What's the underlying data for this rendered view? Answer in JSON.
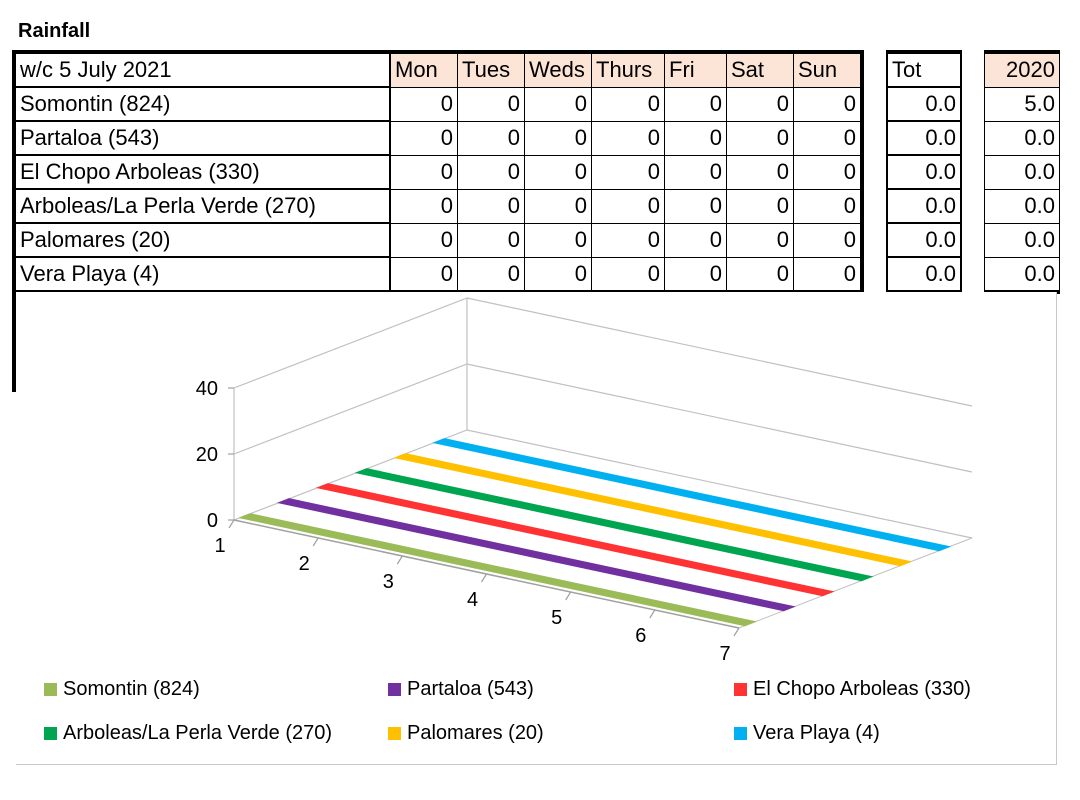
{
  "title": "Rainfall",
  "table": {
    "week_label": "w/c 5 July 2021",
    "days": [
      "Mon",
      "Tues",
      "Weds",
      "Thurs",
      "Fri",
      "Sat",
      "Sun"
    ],
    "total_label": "Tot",
    "prev_year_label": "2020",
    "rows": [
      {
        "location": "Somontin (824)",
        "days": [
          "0",
          "0",
          "0",
          "0",
          "0",
          "0",
          "0"
        ],
        "total": "0.0",
        "prev": "5.0"
      },
      {
        "location": "Partaloa (543)",
        "days": [
          "0",
          "0",
          "0",
          "0",
          "0",
          "0",
          "0"
        ],
        "total": "0.0",
        "prev": "0.0"
      },
      {
        "location": "El Chopo Arboleas (330)",
        "days": [
          "0",
          "0",
          "0",
          "0",
          "0",
          "0",
          "0"
        ],
        "total": "0.0",
        "prev": "0.0"
      },
      {
        "location": "Arboleas/La Perla Verde (270)",
        "days": [
          "0",
          "0",
          "0",
          "0",
          "0",
          "0",
          "0"
        ],
        "total": "0.0",
        "prev": "0.0"
      },
      {
        "location": "Palomares (20)",
        "days": [
          "0",
          "0",
          "0",
          "0",
          "0",
          "0",
          "0"
        ],
        "total": "0.0",
        "prev": "0.0"
      },
      {
        "location": "Vera Playa (4)",
        "days": [
          "0",
          "0",
          "0",
          "0",
          "0",
          "0",
          "0"
        ],
        "total": "0.0",
        "prev": "0.0"
      }
    ]
  },
  "chart_data": {
    "type": "area",
    "view": "3d",
    "title": "",
    "xlabel": "",
    "ylabel": "",
    "categories": [
      "1",
      "2",
      "3",
      "4",
      "5",
      "6",
      "7"
    ],
    "ylim": [
      0,
      40
    ],
    "yticks": [
      "0",
      "20",
      "40"
    ],
    "grid": true,
    "legend": "bottom",
    "series": [
      {
        "name": "Somontin (824)",
        "color": "#9bbb59",
        "values": [
          0,
          0,
          0,
          0,
          0,
          0,
          0
        ]
      },
      {
        "name": "Partaloa (543)",
        "color": "#7030a0",
        "values": [
          0,
          0,
          0,
          0,
          0,
          0,
          0
        ]
      },
      {
        "name": "El Chopo Arboleas (330)",
        "color": "#ff3333",
        "values": [
          0,
          0,
          0,
          0,
          0,
          0,
          0
        ]
      },
      {
        "name": "Arboleas/La Perla Verde (270)",
        "color": "#00a550",
        "values": [
          0,
          0,
          0,
          0,
          0,
          0,
          0
        ]
      },
      {
        "name": "Palomares (20)",
        "color": "#ffc000",
        "values": [
          0,
          0,
          0,
          0,
          0,
          0,
          0
        ]
      },
      {
        "name": "Vera Playa (4)",
        "color": "#00b0f0",
        "values": [
          0,
          0,
          0,
          0,
          0,
          0,
          0
        ]
      }
    ]
  }
}
